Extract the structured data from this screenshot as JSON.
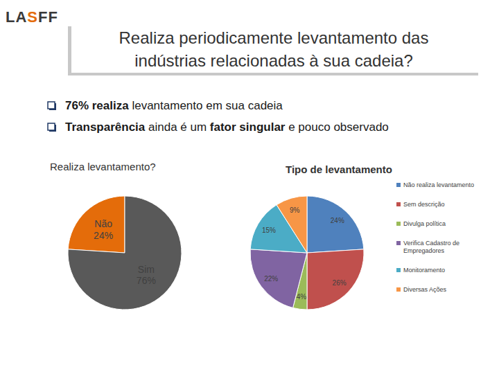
{
  "logo": "LASFF",
  "title": "Realiza periodicamente levantamento das indústrias relacionadas à sua cadeia?",
  "bullets": [
    [
      {
        "text": "76% realiza",
        "bold": true
      },
      {
        "text": " levantamento em sua cadeia",
        "bold": false
      }
    ],
    [
      {
        "text": "Transparência",
        "bold": true
      },
      {
        "text": " ainda é um ",
        "bold": false
      },
      {
        "text": "fator singular",
        "bold": true
      },
      {
        "text": " e pouco observado",
        "bold": false
      }
    ]
  ],
  "chart_data": [
    {
      "type": "pie",
      "title": "Realiza levantamento?",
      "categories": [
        "Não",
        "Sim"
      ],
      "values": [
        24,
        76
      ],
      "value_labels": [
        "24%",
        "76%"
      ],
      "colors": [
        "#e46c0a",
        "#595959"
      ],
      "data_labels": true
    },
    {
      "type": "pie",
      "title": "Tipo de levantamento",
      "categories": [
        "Não realiza levantamento",
        "Sem descrição",
        "Divulga política",
        "Verifica Cadastro de Empregadores",
        "Monitoramento",
        "Diversas Ações"
      ],
      "values": [
        24,
        26,
        4,
        22,
        15,
        9
      ],
      "value_labels": [
        "24%",
        "26%",
        "4%",
        "22%",
        "15%",
        "9%"
      ],
      "colors": [
        "#4f81bd",
        "#c0504d",
        "#9bbb59",
        "#8064a2",
        "#4bacc6",
        "#f79646"
      ],
      "data_labels": true,
      "legend": "right"
    }
  ]
}
